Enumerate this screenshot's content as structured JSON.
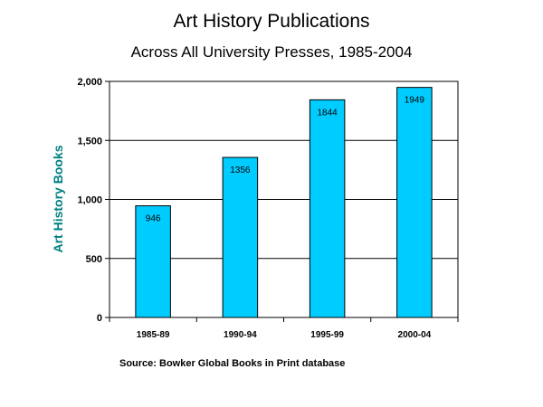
{
  "title": "Art History Publications",
  "subtitle": "Across All University Presses, 1985-2004",
  "source": "Source: Bowker Global Books in Print database",
  "colors": {
    "bar": "#00ccff",
    "ylabel": "#008080"
  },
  "chart_data": {
    "type": "bar",
    "categories": [
      "1985-89",
      "1990-94",
      "1995-99",
      "2000-04"
    ],
    "values": [
      946,
      1356,
      1844,
      1949
    ],
    "data_labels": [
      "946",
      "1356",
      "1844",
      "1949"
    ],
    "ylabel": "Art History Books",
    "xlabel": "",
    "ylim": [
      0,
      2000
    ],
    "y_ticks": [
      0,
      500,
      1000,
      1500,
      2000
    ],
    "y_tick_labels": [
      "0",
      "500",
      "1,000",
      "1,500",
      "2,000"
    ],
    "grid": true,
    "legend": "none"
  }
}
